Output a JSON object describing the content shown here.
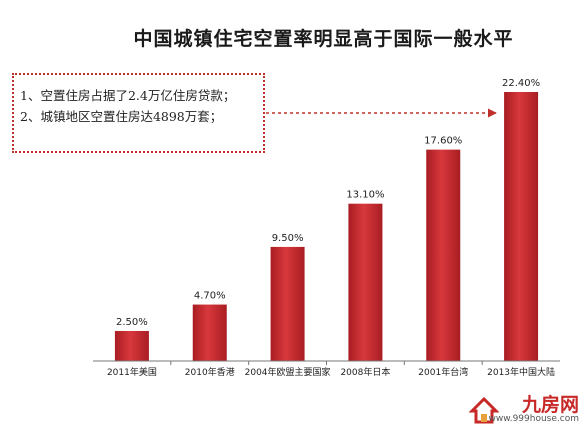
{
  "title": "中国城镇住宅空置率明显高于国际一般水平",
  "notes": [
    "1、空置住房占据了2.4万亿住房贷款；",
    "2、城镇地区空置住房达4898万套；"
  ],
  "chart_data": {
    "type": "bar",
    "title": "中国城镇住宅空置率明显高于国际一般水平",
    "categories": [
      "2011年美国",
      "2010年香港",
      "2004年欧盟主要国家",
      "2008年日本",
      "2001年台湾",
      "2013年中国大陆"
    ],
    "values": [
      2.5,
      4.7,
      9.5,
      13.1,
      17.6,
      22.4
    ],
    "data_labels": [
      "2.50%",
      "4.70%",
      "9.50%",
      "13.10%",
      "17.60%",
      "22.40%"
    ],
    "unit": "%",
    "xlabel": "",
    "ylabel": "",
    "ylim": [
      0,
      22.4
    ],
    "grid": false,
    "bar_color": "#c0272d"
  },
  "watermark": {
    "name": "九房网",
    "url": "www.999house.com"
  },
  "colors": {
    "accent": "#c0302a",
    "bar": "#c0272d"
  }
}
